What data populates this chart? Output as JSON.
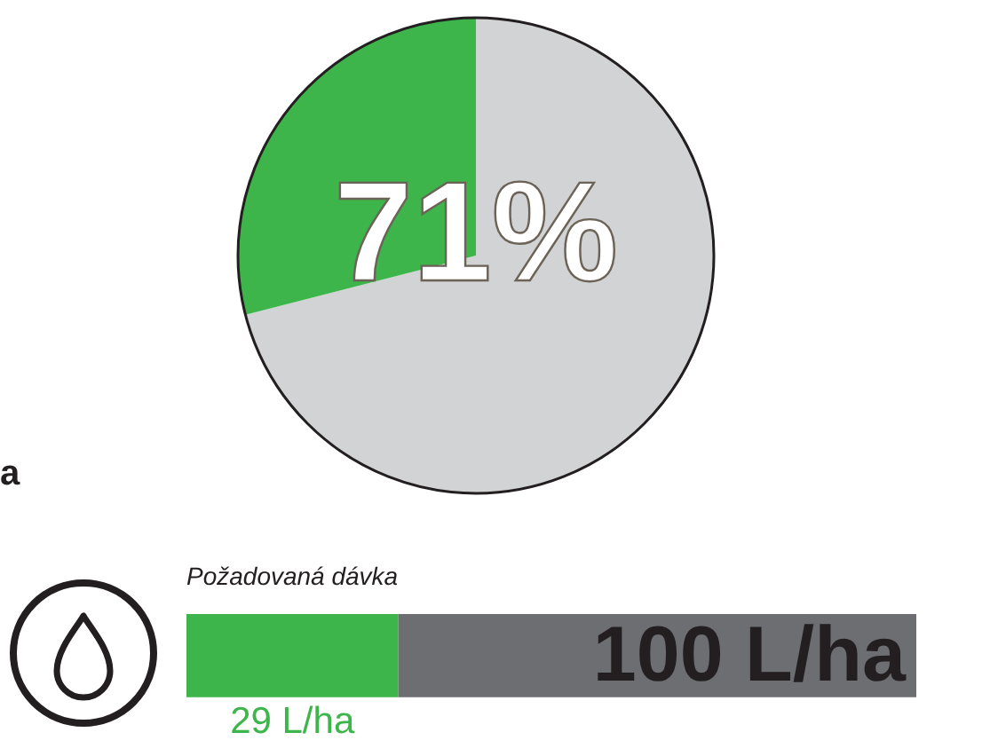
{
  "chart_data": [
    {
      "type": "pie",
      "categories": [
        null,
        null
      ],
      "values": [
        71,
        29
      ],
      "colors": [
        "#d1d3d4",
        "#3db54a"
      ],
      "value_labels": [
        "71%",
        null
      ],
      "annotations": [
        "a"
      ]
    },
    {
      "type": "bar",
      "orientation": "horizontal",
      "stacked": true,
      "title": "Požadovaná dávka",
      "categories": [
        null
      ],
      "series": [
        {
          "color": "#3db54a",
          "values": [
            29
          ],
          "value_labels": [
            "29 L/ha"
          ]
        },
        {
          "color": "#6d6e71",
          "values": [
            71
          ]
        }
      ],
      "totals": [
        "100 L/ha"
      ],
      "xlim": [
        0,
        100
      ],
      "tick_labels": false
    }
  ]
}
